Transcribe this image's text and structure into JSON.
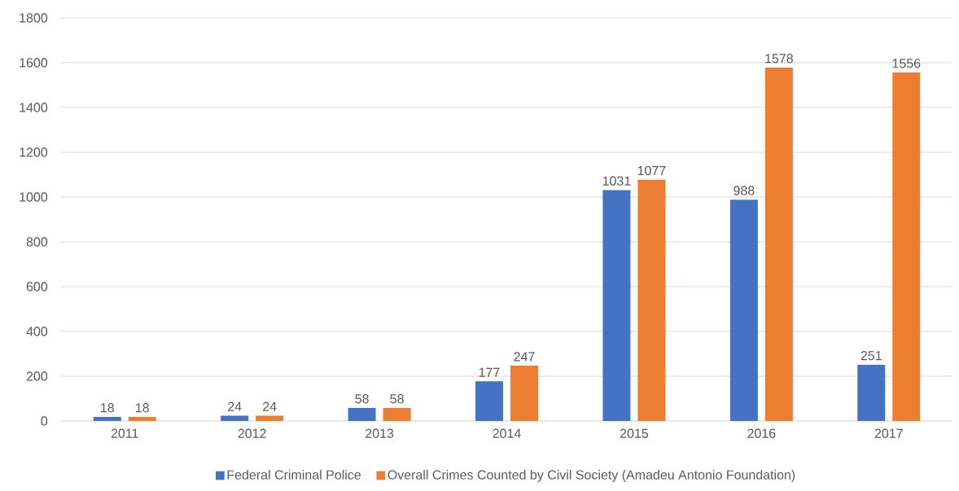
{
  "chart_data": {
    "type": "bar",
    "categories": [
      "2011",
      "2012",
      "2013",
      "2014",
      "2015",
      "2016",
      "2017"
    ],
    "series": [
      {
        "name": "Federal Criminal Police",
        "color": "#4472c4",
        "values": [
          18,
          24,
          58,
          177,
          1031,
          988,
          251
        ]
      },
      {
        "name": "Overall Crimes Counted by Civil Society (Amadeu Antonio Foundation)",
        "color": "#ed7d31",
        "values": [
          18,
          24,
          58,
          247,
          1077,
          1578,
          1556
        ]
      }
    ],
    "ylim": [
      0,
      1800
    ],
    "yticks": [
      0,
      200,
      400,
      600,
      800,
      1000,
      1200,
      1400,
      1600,
      1800
    ],
    "grid": "y",
    "legend": "bottom",
    "data_labels": true
  }
}
